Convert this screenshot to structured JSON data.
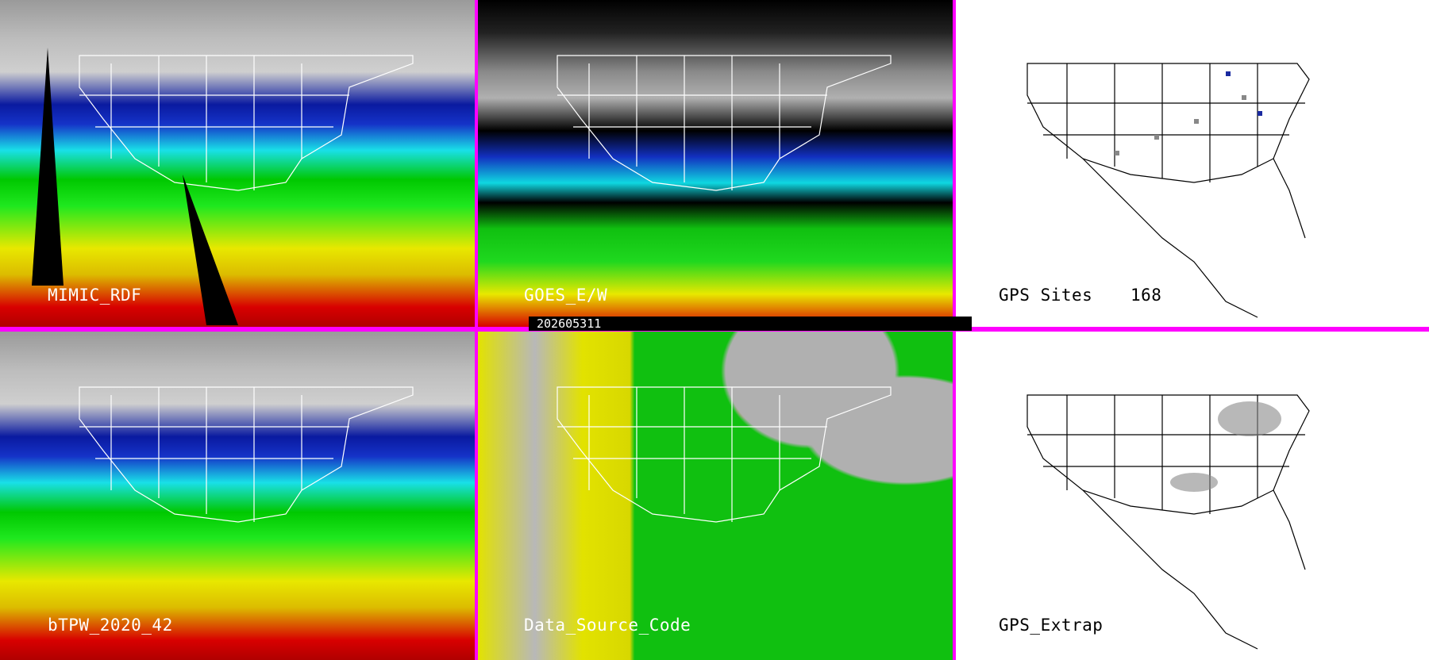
{
  "panels": {
    "mimic": {
      "label": "MIMIC_RDF"
    },
    "goes": {
      "label": "GOES_E/W"
    },
    "gps_sites": {
      "label": "GPS Sites",
      "count": "168"
    },
    "btpw": {
      "label": "bTPW_2020_42"
    },
    "data_source": {
      "label": "Data_Source_Code"
    },
    "gps_extrap": {
      "label": "GPS_Extrap"
    }
  },
  "timestamp": "202605311",
  "colors": {
    "separator": "#ff00ff",
    "moist": "#d80000",
    "dry": "#1533c8",
    "mid": "#10c010"
  }
}
